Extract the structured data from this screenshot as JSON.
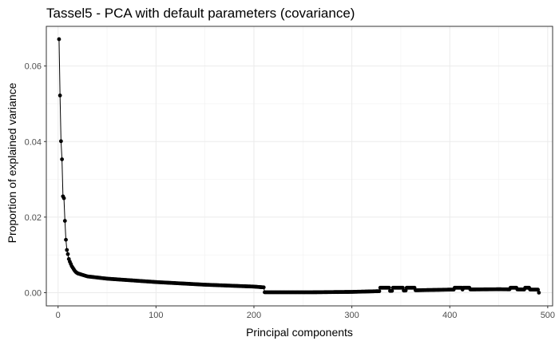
{
  "chart_data": {
    "type": "scatter",
    "title": "Tassel5 - PCA with default parameters (covariance)",
    "xlabel": "Principal components",
    "ylabel": "Proportion of explained variance",
    "xlim": [
      -12,
      505
    ],
    "ylim": [
      -0.0035,
      0.0705
    ],
    "x_ticks": [
      0,
      100,
      200,
      300,
      400,
      500
    ],
    "y_ticks": [
      0.0,
      0.02,
      0.04,
      0.06
    ],
    "x_tick_labels": [
      "0",
      "100",
      "200",
      "300",
      "400",
      "500"
    ],
    "y_tick_labels": [
      "0.00",
      "0.02",
      "0.04",
      "0.06"
    ],
    "grid": true,
    "connect_points": true,
    "series": [
      {
        "n_components": 491,
        "values_first": [
          0.0671,
          0.0522,
          0.0401,
          0.0353,
          0.0255,
          0.025,
          0.019,
          0.014,
          0.0113,
          0.0102,
          0.0089,
          0.0082,
          0.0076,
          0.007,
          0.0066,
          0.0062,
          0.0058,
          0.0055,
          0.0053,
          0.0051
        ],
        "knots": [
          [
            20,
            0.0051
          ],
          [
            30,
            0.0043
          ],
          [
            50,
            0.0037
          ],
          [
            100,
            0.0028
          ],
          [
            150,
            0.0021
          ],
          [
            200,
            0.0016
          ],
          [
            210,
            0.0014
          ]
        ],
        "step_x": 211,
        "step_y": 0.0001,
        "tail": [
          [
            211,
            0.0001
          ],
          [
            260,
            0.0001
          ],
          [
            300,
            0.0002
          ],
          [
            330,
            0.0004
          ],
          [
            360,
            0.0006
          ],
          [
            400,
            0.0008
          ],
          [
            450,
            0.0009
          ],
          [
            490,
            0.0008
          ],
          [
            491,
            0.0
          ]
        ],
        "bump_ranges": [
          [
            329,
            338
          ],
          [
            342,
            352
          ],
          [
            356,
            364
          ],
          [
            405,
            412
          ],
          [
            414,
            420
          ],
          [
            462,
            468
          ],
          [
            477,
            481
          ]
        ],
        "bump_value": 0.0013
      }
    ]
  }
}
